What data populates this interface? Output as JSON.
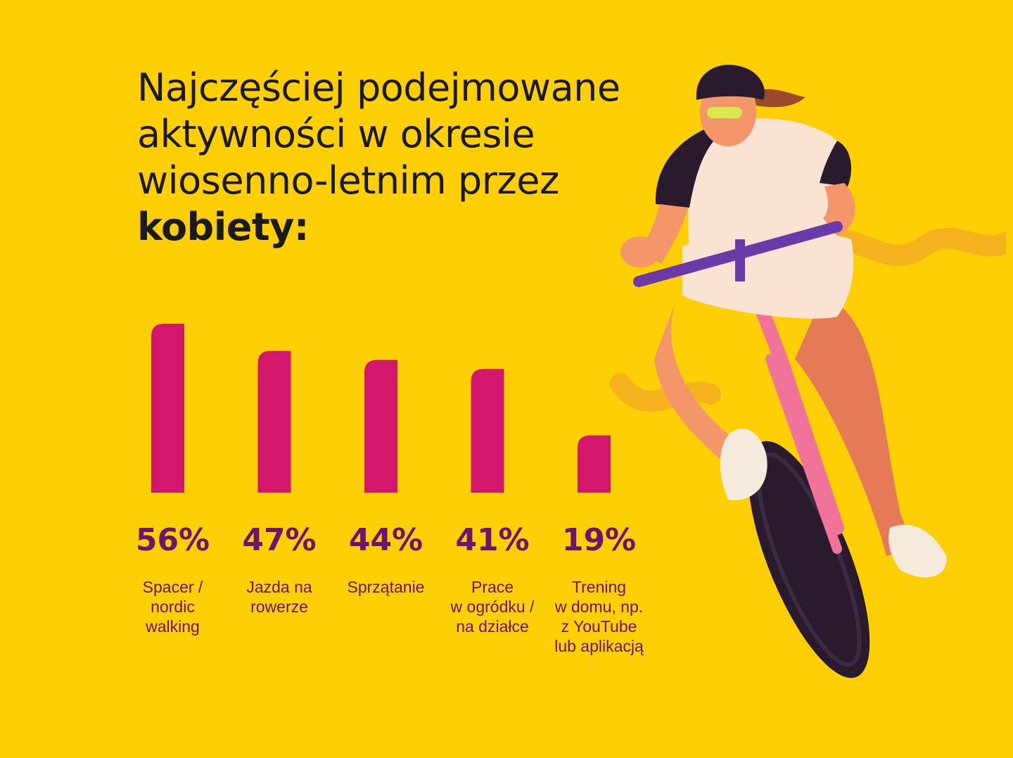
{
  "header": {
    "title_lines": [
      "Najczęściej podejmowane",
      "aktywności w okresie",
      "wiosenno-letnim przez"
    ],
    "title_emphasis": "kobiety:"
  },
  "colors": {
    "background": "#FFCF05",
    "bar": "#D3176C",
    "value_text": "#6B1470",
    "title_text": "#1A1A1A"
  },
  "chart_data": {
    "type": "bar",
    "unit": "%",
    "categories": [
      [
        "Spacer /",
        "nordic",
        "walking"
      ],
      [
        "Jazda na",
        "rowerze"
      ],
      [
        "Sprzątanie"
      ],
      [
        "Prace",
        "w ogródku /",
        "na działce"
      ],
      [
        "Trening",
        "w domu, np.",
        "z YouTube",
        "lub aplikacją"
      ]
    ],
    "values": [
      56,
      47,
      44,
      41,
      19
    ],
    "value_labels": [
      "56%",
      "47%",
      "44%",
      "41%",
      "19%"
    ],
    "grid": false,
    "legend": "none"
  },
  "illustration": {
    "icon": "woman-cyclist-illustration"
  }
}
